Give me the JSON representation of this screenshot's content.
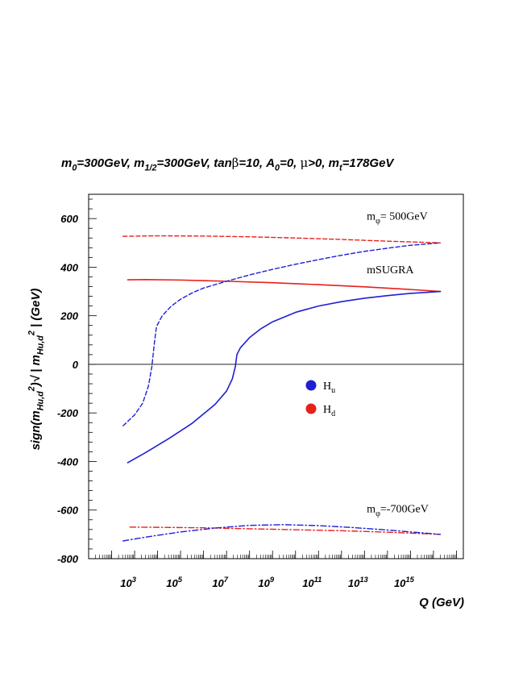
{
  "chart_data": {
    "type": "line",
    "title": {
      "parts": [
        {
          "t": "m",
          "s": null
        },
        {
          "t": "0",
          "s": "sub"
        },
        {
          "t": "=300GeV, m",
          "s": null
        },
        {
          "t": "1/2",
          "s": "sub"
        },
        {
          "t": "=300GeV, tan",
          "s": null
        },
        {
          "t": "β",
          "s": "greek"
        },
        {
          "t": "=10, A",
          "s": null
        },
        {
          "t": "0",
          "s": "sub"
        },
        {
          "t": "=0, ",
          "s": null
        },
        {
          "t": "μ",
          "s": "greek"
        },
        {
          "t": ">0, m",
          "s": null
        },
        {
          "t": "t",
          "s": "sub"
        },
        {
          "t": "=178GeV",
          "s": null
        }
      ]
    },
    "xlabel": "Q (GeV)",
    "ylabel": {
      "parts": [
        {
          "t": "sign(m",
          "s": null
        },
        {
          "t": "Hu,d",
          "s": "sub"
        },
        {
          "t": "2",
          "s": "sup"
        },
        {
          "t": ")√ | m",
          "s": null
        },
        {
          "t": "Hu,d",
          "s": "sub"
        },
        {
          "t": "2",
          "s": "sup"
        },
        {
          "t": " |  (GeV)",
          "s": null
        }
      ]
    },
    "xscale": "log10",
    "xlim_log10": [
      1.0,
      17.3
    ],
    "ylim": [
      -800,
      700
    ],
    "yticks": [
      {
        "value": -800,
        "label": "-800"
      },
      {
        "value": -600,
        "label": "-600"
      },
      {
        "value": -400,
        "label": "-400"
      },
      {
        "value": -200,
        "label": "-200"
      },
      {
        "value": 0,
        "label": "0"
      },
      {
        "value": 200,
        "label": "200"
      },
      {
        "value": 400,
        "label": "400"
      },
      {
        "value": 600,
        "label": "600"
      }
    ],
    "xticks": [
      {
        "log10": 3,
        "base": "10",
        "exp": "3"
      },
      {
        "log10": 5,
        "base": "10",
        "exp": "5"
      },
      {
        "log10": 7,
        "base": "10",
        "exp": "7"
      },
      {
        "log10": 9,
        "base": "10",
        "exp": "9"
      },
      {
        "log10": 11,
        "base": "10",
        "exp": "11"
      },
      {
        "log10": 13,
        "base": "10",
        "exp": "13"
      },
      {
        "log10": 15,
        "base": "10",
        "exp": "15"
      }
    ],
    "zero_line": true,
    "grid": false,
    "legend": {
      "position": "center",
      "entries": [
        {
          "label": "H",
          "sub": "u",
          "color": "#1f1fd6"
        },
        {
          "label": "H",
          "sub": "d",
          "color": "#e8201c"
        }
      ]
    },
    "annotations": [
      {
        "parts": [
          {
            "t": "m",
            "s": null
          },
          {
            "t": "φ",
            "s": "sub"
          },
          {
            "t": "= 500GeV",
            "s": null
          }
        ],
        "x_log10": 13.1,
        "y": 595
      },
      {
        "parts": [
          {
            "t": "mSUGRA",
            "s": null
          }
        ],
        "x_log10": 13.1,
        "y": 375
      },
      {
        "parts": [
          {
            "t": "m",
            "s": null
          },
          {
            "t": "φ",
            "s": "sub"
          },
          {
            "t": "=-700GeV",
            "s": null
          }
        ],
        "x_log10": 13.1,
        "y": -610
      }
    ],
    "series": [
      {
        "group": "mSUGRA",
        "higgs": "Hd",
        "color": "#e8201c",
        "style": "solid",
        "points": [
          [
            2.7,
            348
          ],
          [
            3.5,
            349
          ],
          [
            5.0,
            347
          ],
          [
            7.0,
            342
          ],
          [
            9.0,
            336
          ],
          [
            11.0,
            328
          ],
          [
            13.0,
            319
          ],
          [
            15.0,
            308
          ],
          [
            16.3,
            300
          ]
        ]
      },
      {
        "group": "mSUGRA",
        "higgs": "Hu",
        "color": "#1f1fd6",
        "style": "solid",
        "points": [
          [
            2.7,
            -405
          ],
          [
            3.5,
            -362
          ],
          [
            4.5,
            -305
          ],
          [
            5.5,
            -243
          ],
          [
            6.5,
            -165
          ],
          [
            7.0,
            -110
          ],
          [
            7.25,
            -60
          ],
          [
            7.38,
            -10
          ],
          [
            7.45,
            40
          ],
          [
            7.6,
            68
          ],
          [
            8.0,
            110
          ],
          [
            8.5,
            147
          ],
          [
            9.0,
            175
          ],
          [
            10.0,
            214
          ],
          [
            11.0,
            240
          ],
          [
            12.0,
            258
          ],
          [
            13.0,
            272
          ],
          [
            14.0,
            283
          ],
          [
            15.0,
            292
          ],
          [
            16.3,
            300
          ]
        ]
      },
      {
        "group": "500GeV",
        "higgs": "Hd",
        "color": "#e8201c",
        "style": "dashed",
        "points": [
          [
            2.5,
            527
          ],
          [
            4.0,
            529
          ],
          [
            6.0,
            528
          ],
          [
            8.0,
            525
          ],
          [
            10.0,
            520
          ],
          [
            12.0,
            514
          ],
          [
            14.0,
            507
          ],
          [
            16.3,
            500
          ]
        ]
      },
      {
        "group": "500GeV",
        "higgs": "Hu",
        "color": "#1f1fd6",
        "style": "dashed",
        "points": [
          [
            2.5,
            -253
          ],
          [
            3.0,
            -208
          ],
          [
            3.35,
            -160
          ],
          [
            3.6,
            -90
          ],
          [
            3.75,
            -10
          ],
          [
            3.85,
            80
          ],
          [
            3.95,
            155
          ],
          [
            4.2,
            200
          ],
          [
            4.6,
            240
          ],
          [
            5.0,
            268
          ],
          [
            5.5,
            294
          ],
          [
            6.0,
            314
          ],
          [
            7.0,
            342
          ],
          [
            8.0,
            368
          ],
          [
            9.0,
            391
          ],
          [
            10.0,
            412
          ],
          [
            11.0,
            431
          ],
          [
            12.0,
            449
          ],
          [
            13.0,
            465
          ],
          [
            14.0,
            478
          ],
          [
            15.0,
            490
          ],
          [
            16.3,
            500
          ]
        ]
      },
      {
        "group": "-700GeV",
        "higgs": "Hd",
        "color": "#e8201c",
        "style": "dashdot",
        "points": [
          [
            2.8,
            -670
          ],
          [
            4.0,
            -671
          ],
          [
            6.0,
            -673
          ],
          [
            8.0,
            -677
          ],
          [
            10.0,
            -681
          ],
          [
            12.0,
            -685
          ],
          [
            14.0,
            -691
          ],
          [
            16.3,
            -700
          ]
        ]
      },
      {
        "group": "-700GeV",
        "higgs": "Hu",
        "color": "#1f1fd6",
        "style": "dashdot",
        "points": [
          [
            2.5,
            -727
          ],
          [
            3.5,
            -711
          ],
          [
            5.0,
            -690
          ],
          [
            6.5,
            -674
          ],
          [
            8.0,
            -663
          ],
          [
            9.5,
            -660
          ],
          [
            11.0,
            -664
          ],
          [
            12.5,
            -672
          ],
          [
            14.0,
            -682
          ],
          [
            16.3,
            -700
          ]
        ]
      }
    ]
  }
}
